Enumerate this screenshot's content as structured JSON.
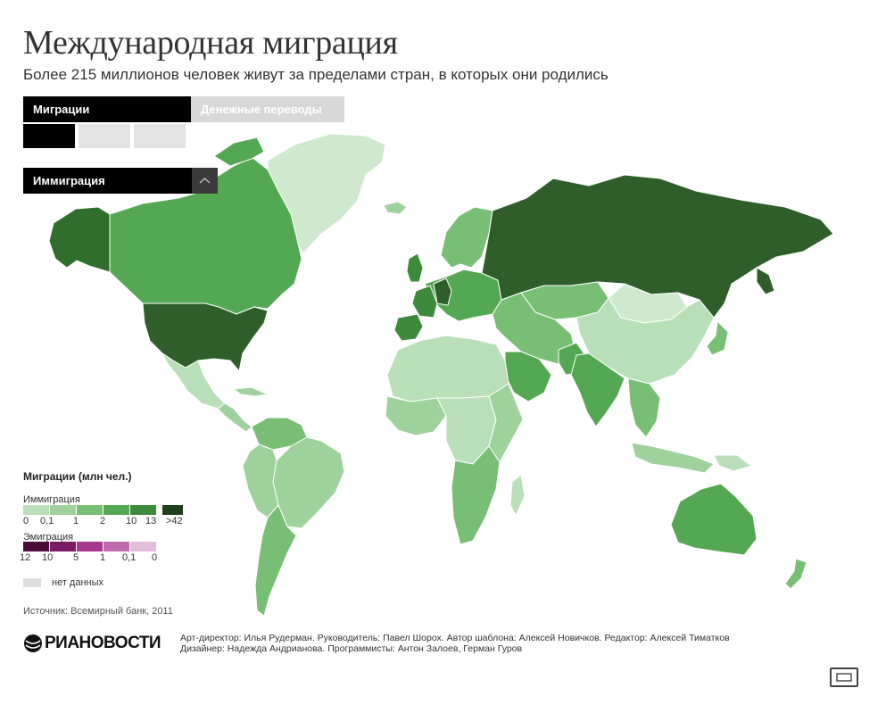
{
  "header": {
    "title": "Международная миграция",
    "subtitle": "Более 215 миллионов человек живут за пределами стран, в которых они родились"
  },
  "tabs": [
    {
      "label": "Миграции",
      "active": true
    },
    {
      "label": "Денежные переводы",
      "active": false
    }
  ],
  "view_buttons": [
    {
      "icon": "world-map-icon",
      "active": true
    },
    {
      "icon": "flow-lines-icon",
      "active": false
    },
    {
      "icon": "table-icon",
      "active": false
    }
  ],
  "dropdown": {
    "selected": "Иммиграция",
    "icon": "chevron-up-icon"
  },
  "legend": {
    "title": "Миграции (млн чел.)",
    "immigration": {
      "label": "Иммиграция",
      "ticks": [
        "0",
        "0,1",
        "1",
        "2",
        "10",
        "13",
        ">42"
      ],
      "colors": [
        "#b9dfb8",
        "#9fd19d",
        "#78bf75",
        "#55a853",
        "#3d8a3b",
        "#1d3f1a"
      ]
    },
    "emigration": {
      "label": "Эмиграция",
      "ticks": [
        "12",
        "10",
        "5",
        "1",
        "0,1",
        "0"
      ],
      "colors": [
        "#4a0a38",
        "#7a1a62",
        "#a8388f",
        "#c06aae",
        "#e0bfd9"
      ]
    },
    "no_data": {
      "label": "нет данных",
      "color": "#e0dcde"
    }
  },
  "source": "Источник: Всемирный банк, 2011",
  "logo": {
    "text": "РИАНОВОСТИ",
    "icon": "ria-globe-icon"
  },
  "credits": [
    "Арт-директор: Илья Рудерман. Руководитель: Павел Шорох. Автор шаблона: Алексей Новичков. Редактор: Алексей Тиматков",
    "Дизайнер: Надежда Андрианова. Программисты: Антон Залоев, Герман Гуров"
  ],
  "fullscreen_button": {
    "icon": "fullscreen-icon"
  },
  "map_regions": [
    {
      "name": "greenland",
      "color": "#cfe9cf"
    },
    {
      "name": "canada",
      "color": "#55a853"
    },
    {
      "name": "alaska",
      "color": "#2f6e2c"
    },
    {
      "name": "usa",
      "color": "#2f5e2a"
    },
    {
      "name": "mexico",
      "color": "#b9dfb8"
    },
    {
      "name": "central-america",
      "color": "#9fd19d"
    },
    {
      "name": "south-america",
      "color": "#9fd19d"
    },
    {
      "name": "brazil",
      "color": "#9fd19d"
    },
    {
      "name": "argentina",
      "color": "#78bf75"
    },
    {
      "name": "colombia-venezuela",
      "color": "#78bf75"
    },
    {
      "name": "europe",
      "color": "#55a853"
    },
    {
      "name": "germany",
      "color": "#2f5e2a"
    },
    {
      "name": "france",
      "color": "#3d8a3b"
    },
    {
      "name": "uk",
      "color": "#3d8a3b"
    },
    {
      "name": "spain",
      "color": "#3d8a3b"
    },
    {
      "name": "scandinavia",
      "color": "#78bf75"
    },
    {
      "name": "iceland",
      "color": "#9fd19d"
    },
    {
      "name": "russia",
      "color": "#2f5e2a"
    },
    {
      "name": "kazakhstan",
      "color": "#78bf75"
    },
    {
      "name": "mongolia",
      "color": "#cfe9cf"
    },
    {
      "name": "china",
      "color": "#b9dfb8"
    },
    {
      "name": "middle-east",
      "color": "#78bf75"
    },
    {
      "name": "saudi-arabia",
      "color": "#55a853"
    },
    {
      "name": "india",
      "color": "#55a853"
    },
    {
      "name": "pakistan",
      "color": "#55a853"
    },
    {
      "name": "southeast-asia",
      "color": "#78bf75"
    },
    {
      "name": "indonesia",
      "color": "#9fd19d"
    },
    {
      "name": "japan",
      "color": "#78bf75"
    },
    {
      "name": "north-africa",
      "color": "#b9dfb8"
    },
    {
      "name": "west-africa",
      "color": "#9fd19d"
    },
    {
      "name": "central-africa",
      "color": "#b9dfb8"
    },
    {
      "name": "east-africa",
      "color": "#9fd19d"
    },
    {
      "name": "southern-africa",
      "color": "#78bf75"
    },
    {
      "name": "madagascar",
      "color": "#b9dfb8"
    },
    {
      "name": "australia",
      "color": "#55a853"
    },
    {
      "name": "new-zealand",
      "color": "#78bf75"
    },
    {
      "name": "papua",
      "color": "#b9dfb8"
    }
  ]
}
